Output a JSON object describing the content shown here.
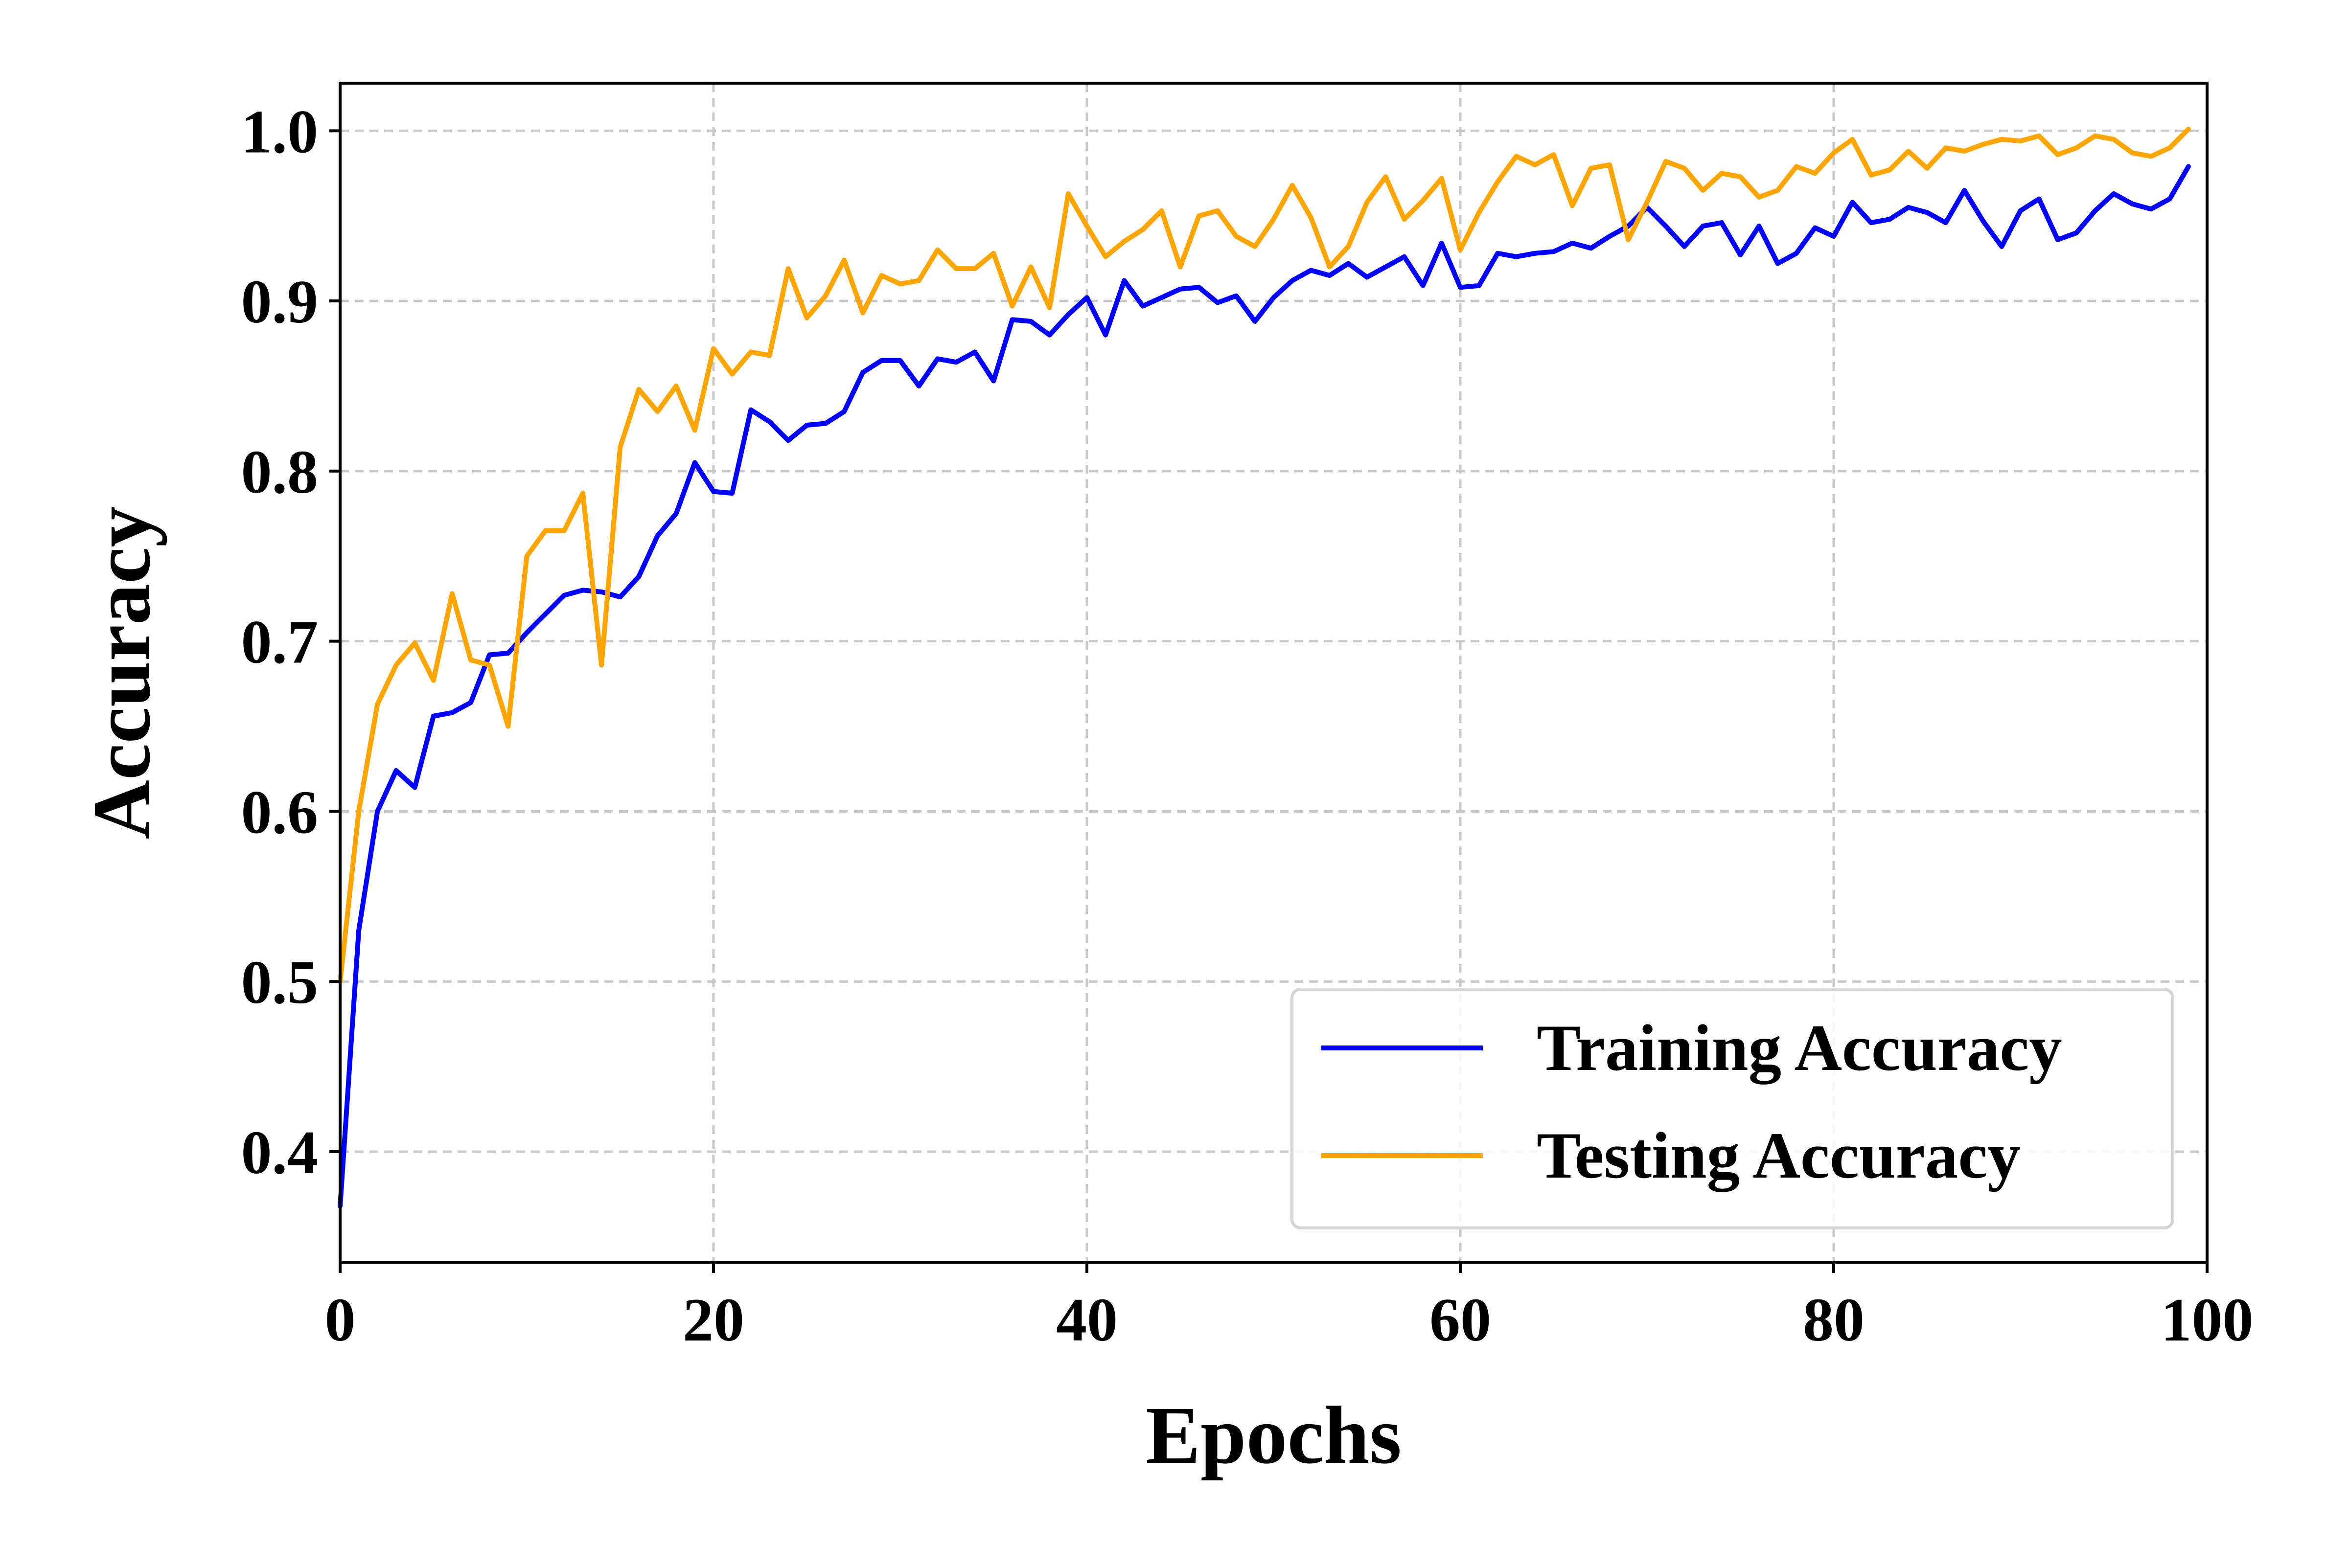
{
  "chart_data": {
    "type": "line",
    "xlabel": "Epochs",
    "ylabel": "Accuracy",
    "xlim": [
      0,
      100
    ],
    "ylim": [
      0.335,
      1.028
    ],
    "xticks": [
      0,
      20,
      40,
      60,
      80,
      100
    ],
    "xtick_labels": [
      "0",
      "20",
      "40",
      "60",
      "80",
      "100"
    ],
    "yticks": [
      0.4,
      0.5,
      0.6,
      0.7,
      0.8,
      0.9,
      1.0
    ],
    "ytick_labels": [
      "0.4",
      "0.5",
      "0.6",
      "0.7",
      "0.8",
      "0.9",
      "1.0"
    ],
    "grid": true,
    "legend_position": "lower-right",
    "x": [
      0,
      1,
      2,
      3,
      4,
      5,
      6,
      7,
      8,
      9,
      10,
      11,
      12,
      13,
      14,
      15,
      16,
      17,
      18,
      19,
      20,
      21,
      22,
      23,
      24,
      25,
      26,
      27,
      28,
      29,
      30,
      31,
      32,
      33,
      34,
      35,
      36,
      37,
      38,
      39,
      40,
      41,
      42,
      43,
      44,
      45,
      46,
      47,
      48,
      49,
      50,
      51,
      52,
      53,
      54,
      55,
      56,
      57,
      58,
      59,
      60,
      61,
      62,
      63,
      64,
      65,
      66,
      67,
      68,
      69,
      70,
      71,
      72,
      73,
      74,
      75,
      76,
      77,
      78,
      79,
      80,
      81,
      82,
      83,
      84,
      85,
      86,
      87,
      88,
      89,
      90,
      91,
      92,
      93,
      94,
      95,
      96,
      97,
      98,
      99
    ],
    "series": [
      {
        "name": "Training Accuracy",
        "color": "#0000ff",
        "values": [
          0.368,
          0.53,
          0.6,
          0.624,
          0.614,
          0.656,
          0.658,
          0.664,
          0.692,
          0.693,
          0.705,
          0.716,
          0.727,
          0.73,
          0.729,
          0.726,
          0.738,
          0.762,
          0.775,
          0.805,
          0.788,
          0.787,
          0.836,
          0.829,
          0.818,
          0.827,
          0.828,
          0.835,
          0.858,
          0.865,
          0.865,
          0.85,
          0.866,
          0.864,
          0.87,
          0.853,
          0.889,
          0.888,
          0.88,
          0.892,
          0.902,
          0.88,
          0.912,
          0.897,
          0.902,
          0.907,
          0.908,
          0.899,
          0.903,
          0.888,
          0.902,
          0.912,
          0.918,
          0.915,
          0.922,
          0.914,
          0.92,
          0.926,
          0.909,
          0.934,
          0.908,
          0.909,
          0.928,
          0.926,
          0.928,
          0.929,
          0.934,
          0.931,
          0.938,
          0.944,
          0.955,
          0.944,
          0.932,
          0.944,
          0.946,
          0.927,
          0.944,
          0.922,
          0.928,
          0.943,
          0.938,
          0.958,
          0.946,
          0.948,
          0.955,
          0.952,
          0.946,
          0.965,
          0.947,
          0.932,
          0.953,
          0.96,
          0.936,
          0.94,
          0.953,
          0.963,
          0.957,
          0.954,
          0.96,
          0.979
        ]
      },
      {
        "name": "Testing Accuracy",
        "color": "#ffa500",
        "values": [
          0.5,
          0.6,
          0.663,
          0.686,
          0.699,
          0.677,
          0.728,
          0.689,
          0.686,
          0.65,
          0.75,
          0.765,
          0.765,
          0.787,
          0.686,
          0.814,
          0.848,
          0.835,
          0.85,
          0.824,
          0.872,
          0.857,
          0.87,
          0.868,
          0.919,
          0.89,
          0.903,
          0.924,
          0.893,
          0.915,
          0.91,
          0.912,
          0.93,
          0.919,
          0.919,
          0.928,
          0.897,
          0.92,
          0.896,
          0.963,
          0.944,
          0.926,
          0.935,
          0.942,
          0.953,
          0.92,
          0.95,
          0.953,
          0.938,
          0.932,
          0.948,
          0.968,
          0.949,
          0.92,
          0.932,
          0.958,
          0.973,
          0.948,
          0.959,
          0.972,
          0.93,
          0.952,
          0.97,
          0.985,
          0.98,
          0.986,
          0.956,
          0.978,
          0.98,
          0.936,
          0.958,
          0.982,
          0.978,
          0.965,
          0.975,
          0.973,
          0.961,
          0.965,
          0.979,
          0.975,
          0.987,
          0.995,
          0.974,
          0.977,
          0.988,
          0.978,
          0.99,
          0.988,
          0.992,
          0.995,
          0.994,
          0.997,
          0.986,
          0.99,
          0.997,
          0.995,
          0.987,
          0.985,
          0.99,
          1.001
        ]
      }
    ]
  }
}
